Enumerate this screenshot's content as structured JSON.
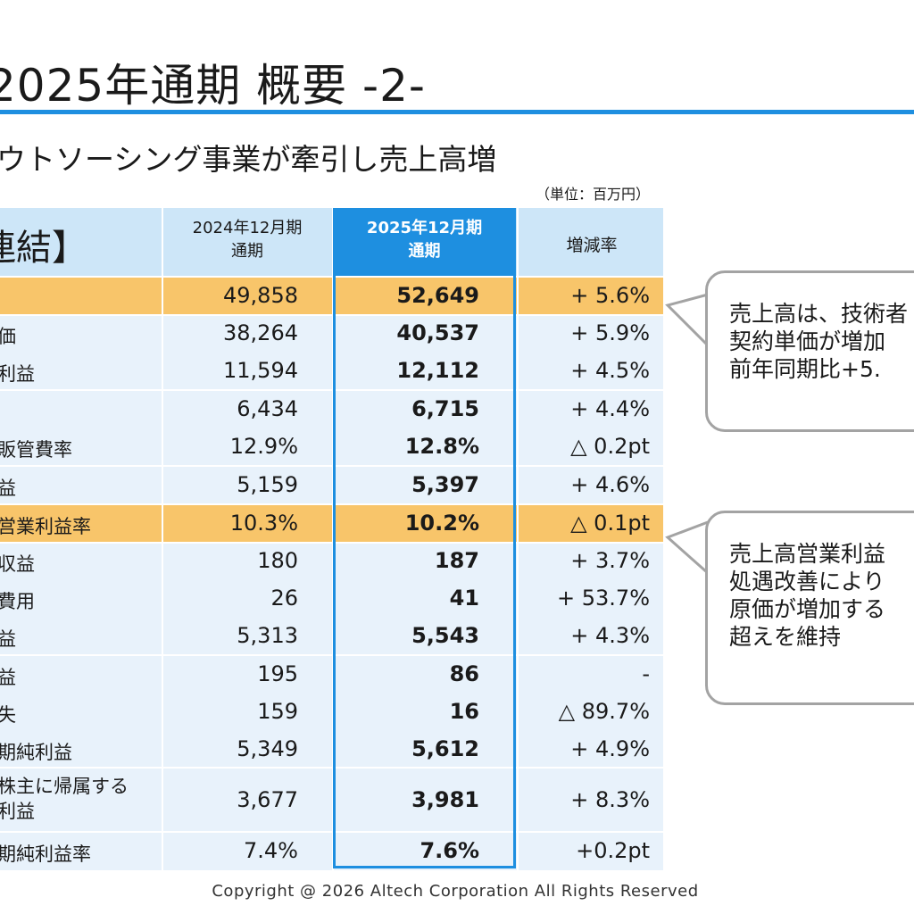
{
  "slide": {
    "title": "2025年通期  概要  -2-",
    "subtitle": "ウトソーシング事業が牽引し売上高増",
    "unit_note": "（単位：百万円）",
    "footer": "Copyright @ 2026  Altech Corporation All Rights Reserved"
  },
  "table": {
    "header_label": "連結】",
    "col_2024": [
      "2024年12月期",
      "通期"
    ],
    "col_2025": [
      "2025年12月期",
      "通期"
    ],
    "col_rate": "増減率",
    "rows": [
      {
        "label": "",
        "v2024": "49,858",
        "v2025": "52,649",
        "rate": "+ 5.6%"
      },
      {
        "label": "価",
        "v2024": "38,264",
        "v2025": "40,537",
        "rate": "+ 5.9%"
      },
      {
        "label": "利益",
        "v2024": "11,594",
        "v2025": "12,112",
        "rate": "+ 4.5%"
      },
      {
        "label": "",
        "v2024": "6,434",
        "v2025": "6,715",
        "rate": "+ 4.4%"
      },
      {
        "label": "販管費率",
        "v2024": "12.9%",
        "v2025": "12.8%",
        "rate": "△ 0.2pt"
      },
      {
        "label": "益",
        "v2024": "5,159",
        "v2025": "5,397",
        "rate": "+ 4.6%"
      },
      {
        "label": "営業利益率",
        "v2024": "10.3%",
        "v2025": "10.2%",
        "rate": "△ 0.1pt"
      },
      {
        "label": "収益",
        "v2024": "180",
        "v2025": "187",
        "rate": "+ 3.7%"
      },
      {
        "label": "費用",
        "v2024": "26",
        "v2025": "41",
        "rate": "+ 53.7%"
      },
      {
        "label": "益",
        "v2024": "5,313",
        "v2025": "5,543",
        "rate": "+ 4.3%"
      },
      {
        "label": "益",
        "v2024": "195",
        "v2025": "86",
        "rate": "-"
      },
      {
        "label": "失",
        "v2024": "159",
        "v2025": "16",
        "rate": "△ 89.7%"
      },
      {
        "label": "期純利益",
        "v2024": "5,349",
        "v2025": "5,612",
        "rate": "+ 4.9%"
      },
      {
        "label_lines": [
          "株主に帰属する",
          "利益"
        ],
        "v2024": "3,677",
        "v2025": "3,981",
        "rate": "+ 8.3%"
      },
      {
        "label": "期純利益率",
        "v2024": "7.4%",
        "v2025": "7.6%",
        "rate": "+0.2pt"
      }
    ]
  },
  "callouts": [
    {
      "lines": [
        "売上高は、技術者",
        "契約単価が増加",
        "前年同期比+5."
      ]
    },
    {
      "lines": [
        "売上高営業利益",
        "処遇改善により",
        "原価が増加する",
        "超えを維持"
      ]
    }
  ],
  "colors": {
    "accent": "#1e8fe0",
    "highlight_row": "#f8c56a",
    "table_bg": "#e8f2fb"
  }
}
